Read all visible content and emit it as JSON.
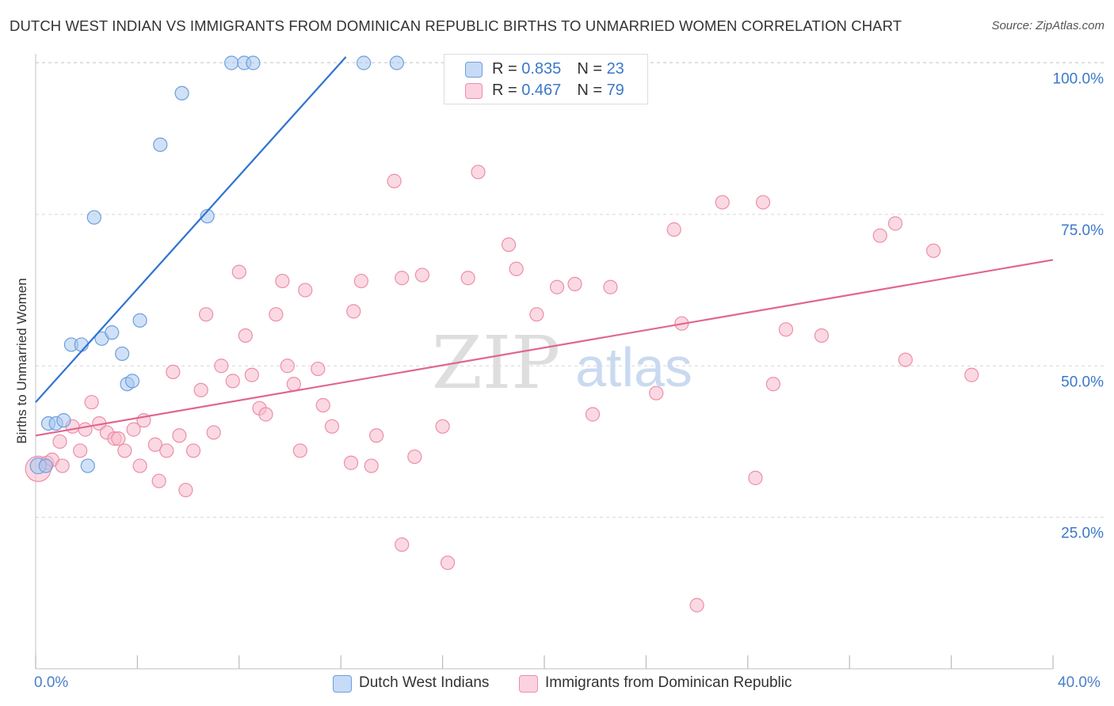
{
  "title": "DUTCH WEST INDIAN VS IMMIGRANTS FROM DOMINICAN REPUBLIC BIRTHS TO UNMARRIED WOMEN CORRELATION CHART",
  "source": "Source: ZipAtlas.com",
  "watermark": {
    "zip": "ZIP",
    "atlas": "atlas"
  },
  "legend_box": {
    "rows": [
      {
        "r_label": "R = ",
        "r_value": "0.835",
        "n_label": "N = ",
        "n_value": "23"
      },
      {
        "r_label": "R = ",
        "r_value": "0.467",
        "n_label": "N = ",
        "n_value": "79"
      }
    ]
  },
  "bottom_legend": {
    "items": [
      {
        "label": "Dutch West Indians"
      },
      {
        "label": "Immigrants from Dominican Republic"
      }
    ]
  },
  "x_axis": {
    "min_label": "0.0%",
    "max_label": "40.0%"
  },
  "colors": {
    "blue_fill": "#a9c9f0",
    "blue_stroke": "#6d9fdc",
    "blue_line": "#2f74d0",
    "pink_fill": "#f7b9cb",
    "pink_stroke": "#ec8ea9",
    "pink_line": "#e0668f",
    "tick_label": "#3a78c9",
    "grid": "#d6d6d6"
  },
  "chart_data": {
    "type": "scatter",
    "title": "DUTCH WEST INDIAN VS IMMIGRANTS FROM DOMINICAN REPUBLIC BIRTHS TO UNMARRIED WOMEN CORRELATION CHART",
    "xlabel": "",
    "ylabel": "Births to Unmarried Women",
    "xlim": [
      0,
      40
    ],
    "ylim": [
      0,
      102
    ],
    "y_ticks": [
      {
        "value": 25,
        "label": "25.0%"
      },
      {
        "value": 50,
        "label": "50.0%"
      },
      {
        "value": 75,
        "label": "75.0%"
      },
      {
        "value": 100,
        "label": "100.0%"
      }
    ],
    "x_ticks": [
      0,
      4,
      8,
      12,
      16,
      20,
      24,
      28,
      32,
      36,
      40
    ],
    "series": [
      {
        "name": "Dutch West Indians",
        "r": 0.835,
        "n": 23,
        "trend": {
          "x": [
            0,
            12.2
          ],
          "y": [
            44,
            101
          ]
        },
        "points": [
          [
            0.1,
            33.5
          ],
          [
            0.4,
            33.5
          ],
          [
            0.5,
            40.5
          ],
          [
            0.8,
            40.5
          ],
          [
            1.1,
            41
          ],
          [
            1.4,
            53.5
          ],
          [
            1.8,
            53.5
          ],
          [
            2.05,
            33.5
          ],
          [
            2.3,
            74.5
          ],
          [
            2.6,
            54.5
          ],
          [
            3.0,
            55.5
          ],
          [
            3.4,
            52
          ],
          [
            3.6,
            47
          ],
          [
            3.8,
            47.5
          ],
          [
            4.1,
            57.5
          ],
          [
            4.9,
            86.5
          ],
          [
            5.75,
            95
          ],
          [
            6.75,
            74.7
          ],
          [
            7.7,
            100
          ],
          [
            8.2,
            100
          ],
          [
            8.55,
            100
          ],
          [
            12.9,
            100
          ],
          [
            14.2,
            100
          ]
        ]
      },
      {
        "name": "Immigrants from Dominican Republic",
        "r": 0.467,
        "n": 79,
        "trend": {
          "x": [
            0,
            40
          ],
          "y": [
            38.5,
            67.5
          ]
        },
        "points": [
          [
            0.1,
            33
          ],
          [
            0.45,
            34
          ],
          [
            0.65,
            34.5
          ],
          [
            0.95,
            37.5
          ],
          [
            1.05,
            33.5
          ],
          [
            1.45,
            40
          ],
          [
            1.75,
            36
          ],
          [
            1.95,
            39.5
          ],
          [
            2.2,
            44
          ],
          [
            2.5,
            40.5
          ],
          [
            2.8,
            39
          ],
          [
            3.1,
            38
          ],
          [
            3.25,
            38
          ],
          [
            3.5,
            36
          ],
          [
            3.85,
            39.5
          ],
          [
            4.1,
            33.5
          ],
          [
            4.25,
            41
          ],
          [
            4.7,
            37
          ],
          [
            4.85,
            31
          ],
          [
            5.15,
            36
          ],
          [
            5.4,
            49
          ],
          [
            5.65,
            38.5
          ],
          [
            5.9,
            29.5
          ],
          [
            6.2,
            36
          ],
          [
            6.5,
            46
          ],
          [
            6.7,
            58.5
          ],
          [
            7.0,
            39
          ],
          [
            7.3,
            50
          ],
          [
            7.75,
            47.5
          ],
          [
            8.0,
            65.5
          ],
          [
            8.25,
            55
          ],
          [
            8.5,
            48.5
          ],
          [
            8.8,
            43
          ],
          [
            9.05,
            42
          ],
          [
            9.45,
            58.5
          ],
          [
            9.7,
            64
          ],
          [
            9.9,
            50
          ],
          [
            10.15,
            47
          ],
          [
            10.4,
            36
          ],
          [
            10.6,
            62.5
          ],
          [
            11.1,
            49.5
          ],
          [
            11.3,
            43.5
          ],
          [
            11.65,
            40
          ],
          [
            12.4,
            34
          ],
          [
            12.5,
            59
          ],
          [
            12.8,
            64
          ],
          [
            13.2,
            33.5
          ],
          [
            13.4,
            38.5
          ],
          [
            14.1,
            80.5
          ],
          [
            14.4,
            20.5
          ],
          [
            14.4,
            64.5
          ],
          [
            14.9,
            35
          ],
          [
            15.2,
            65
          ],
          [
            16.0,
            40
          ],
          [
            16.2,
            17.5
          ],
          [
            17.0,
            64.5
          ],
          [
            17.4,
            82
          ],
          [
            18.6,
            70
          ],
          [
            18.9,
            66
          ],
          [
            19.7,
            58.5
          ],
          [
            20.5,
            63
          ],
          [
            21.2,
            63.5
          ],
          [
            21.9,
            42
          ],
          [
            22.6,
            63
          ],
          [
            24.4,
            45.5
          ],
          [
            25.1,
            72.5
          ],
          [
            25.4,
            57
          ],
          [
            26.0,
            10.5
          ],
          [
            27.0,
            77
          ],
          [
            28.3,
            31.5
          ],
          [
            28.6,
            77
          ],
          [
            29.0,
            47
          ],
          [
            29.5,
            56
          ],
          [
            30.9,
            55
          ],
          [
            33.2,
            71.5
          ],
          [
            33.8,
            73.5
          ],
          [
            34.2,
            51
          ],
          [
            35.3,
            69
          ],
          [
            36.8,
            48.5
          ]
        ]
      }
    ]
  }
}
